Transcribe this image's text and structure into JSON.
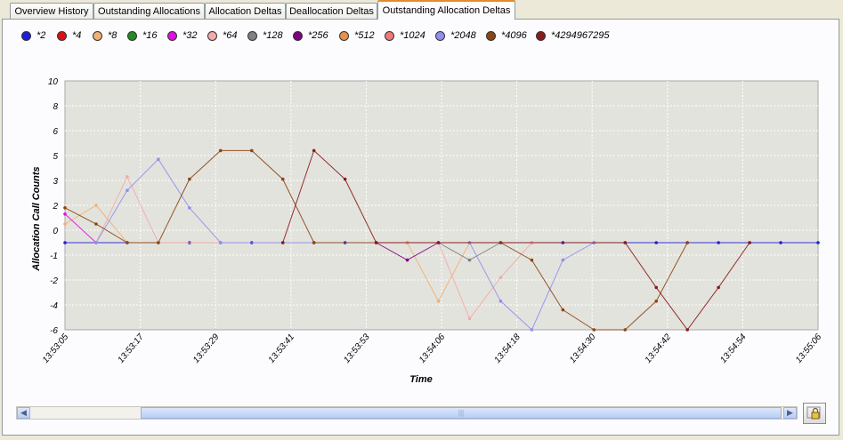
{
  "tabs": [
    {
      "label": "Overview History",
      "active": false
    },
    {
      "label": "Outstanding Allocations",
      "active": false
    },
    {
      "label": "Allocation Deltas",
      "active": false
    },
    {
      "label": "Deallocation Deltas",
      "active": false
    },
    {
      "label": "Outstanding Allocation Deltas",
      "active": true
    }
  ],
  "chart_data": {
    "type": "line",
    "xlabel": "Time",
    "ylabel": "Allocation Call Counts",
    "ylim": [
      -6,
      10
    ],
    "yticks": [
      10,
      8,
      6,
      5,
      3,
      2,
      0,
      -1,
      -2,
      -4,
      -6
    ],
    "xtick_labels": [
      "13:53:05",
      "13:53:17",
      "13:53:29",
      "13:53:41",
      "13:53:53",
      "13:54:06",
      "13:54:18",
      "13:54:30",
      "13:54:42",
      "13:54:54",
      "13:55:06"
    ],
    "x_time_range": [
      "13:53:05",
      "13:55:06"
    ],
    "grid": true,
    "legend_position": "top",
    "series": [
      {
        "name": "*2",
        "color": "#1f1fd6",
        "points": [
          [
            "13:53:05",
            -0.5
          ],
          [
            "13:53:10",
            -0.5
          ],
          [
            "13:53:15",
            -0.5
          ],
          [
            "13:53:20",
            -0.5
          ],
          [
            "13:53:25",
            -0.5
          ],
          [
            "13:53:30",
            -0.5
          ],
          [
            "13:53:35",
            -0.5
          ],
          [
            "13:53:40",
            -0.5
          ],
          [
            "13:53:45",
            -0.5
          ],
          [
            "13:53:50",
            -0.5
          ],
          [
            "13:53:55",
            -0.5
          ],
          [
            "13:54:00",
            -0.5
          ],
          [
            "13:54:05",
            -0.5
          ],
          [
            "13:54:10",
            -0.5
          ],
          [
            "13:54:15",
            -0.5
          ],
          [
            "13:54:20",
            -0.5
          ],
          [
            "13:54:25",
            -0.5
          ],
          [
            "13:54:30",
            -0.5
          ],
          [
            "13:54:35",
            -0.5
          ],
          [
            "13:54:40",
            -0.5
          ],
          [
            "13:54:45",
            -0.5
          ],
          [
            "13:54:50",
            -0.5
          ],
          [
            "13:54:55",
            -0.5
          ],
          [
            "13:55:00",
            -0.5
          ],
          [
            "13:55:06",
            -0.5
          ]
        ]
      },
      {
        "name": "*4",
        "color": "#dd1111",
        "points": []
      },
      {
        "name": "*8",
        "color": "#f0b070",
        "points": [
          [
            "13:53:05",
            0.5
          ],
          [
            "13:53:10",
            2.0
          ],
          [
            "13:53:15",
            -0.5
          ],
          [
            "13:53:55",
            -0.5
          ],
          [
            "13:54:00",
            -0.5
          ],
          [
            "13:54:05",
            -3.7
          ],
          [
            "13:54:10",
            -0.5
          ]
        ]
      },
      {
        "name": "*16",
        "color": "#228b22",
        "points": []
      },
      {
        "name": "*32",
        "color": "#e010e0",
        "points": [
          [
            "13:53:05",
            1.3
          ],
          [
            "13:53:10",
            -0.5
          ]
        ]
      },
      {
        "name": "*64",
        "color": "#f2aaaa",
        "points": [
          [
            "13:53:10",
            -0.5
          ],
          [
            "13:53:15",
            3.3
          ],
          [
            "13:53:20",
            -0.5
          ],
          [
            "13:54:05",
            -0.5
          ],
          [
            "13:54:10",
            -5.1
          ],
          [
            "13:54:15",
            -1.9
          ],
          [
            "13:54:20",
            -0.5
          ]
        ]
      },
      {
        "name": "*128",
        "color": "#808080",
        "points": [
          [
            "13:54:05",
            -0.5
          ],
          [
            "13:54:10",
            -1.2
          ],
          [
            "13:54:15",
            -0.5
          ]
        ]
      },
      {
        "name": "*256",
        "color": "#800080",
        "points": [
          [
            "13:53:55",
            -0.5
          ],
          [
            "13:54:00",
            -1.2
          ],
          [
            "13:54:05",
            -0.5
          ]
        ]
      },
      {
        "name": "*512",
        "color": "#e8904a",
        "points": []
      },
      {
        "name": "*1024",
        "color": "#f07878",
        "points": []
      },
      {
        "name": "*2048",
        "color": "#8f8ff0",
        "points": [
          [
            "13:53:10",
            -0.5
          ],
          [
            "13:53:15",
            2.6
          ],
          [
            "13:53:20",
            4.7
          ],
          [
            "13:53:25",
            1.8
          ],
          [
            "13:53:30",
            -0.5
          ],
          [
            "13:54:10",
            -0.5
          ],
          [
            "13:54:15",
            -3.7
          ],
          [
            "13:54:20",
            -6.0
          ],
          [
            "13:54:25",
            -1.2
          ],
          [
            "13:54:30",
            -0.5
          ]
        ]
      },
      {
        "name": "*4096",
        "color": "#8b4513",
        "points": [
          [
            "13:53:05",
            1.8
          ],
          [
            "13:53:10",
            0.5
          ],
          [
            "13:53:15",
            -0.5
          ],
          [
            "13:53:20",
            -0.5
          ],
          [
            "13:53:25",
            3.1
          ],
          [
            "13:53:30",
            5.2
          ],
          [
            "13:53:35",
            5.2
          ],
          [
            "13:53:40",
            3.1
          ],
          [
            "13:53:45",
            -0.5
          ],
          [
            "13:54:15",
            -0.5
          ],
          [
            "13:54:20",
            -1.2
          ],
          [
            "13:54:25",
            -4.4
          ],
          [
            "13:54:30",
            -6.0
          ],
          [
            "13:54:35",
            -6.0
          ],
          [
            "13:54:40",
            -3.7
          ],
          [
            "13:54:45",
            -0.5
          ]
        ]
      },
      {
        "name": "*4294967295",
        "color": "#8b1a1a",
        "points": [
          [
            "13:53:40",
            -0.5
          ],
          [
            "13:53:45",
            5.2
          ],
          [
            "13:53:50",
            3.1
          ],
          [
            "13:53:55",
            -0.5
          ],
          [
            "13:54:35",
            -0.5
          ],
          [
            "13:54:40",
            -2.6
          ],
          [
            "13:54:45",
            -6.0
          ],
          [
            "13:54:50",
            -2.6
          ],
          [
            "13:54:55",
            -0.5
          ]
        ]
      }
    ]
  }
}
